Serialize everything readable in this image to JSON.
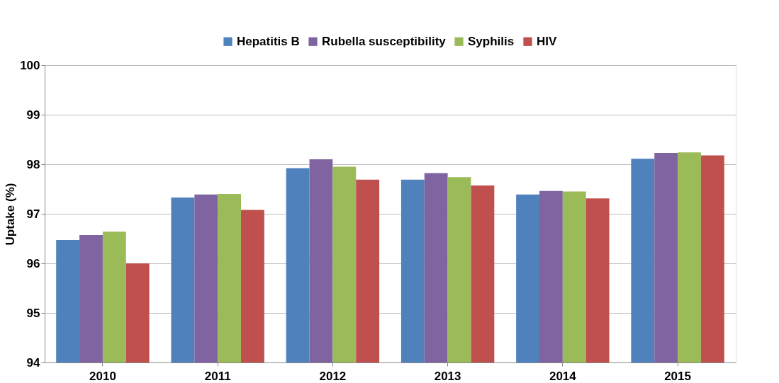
{
  "chart_data": {
    "type": "bar",
    "ylabel": "Uptake (%)",
    "categories": [
      "2010",
      "2011",
      "2012",
      "2013",
      "2014",
      "2015"
    ],
    "series": [
      {
        "name": "Hepatitis B",
        "color": "#4f81bd",
        "values": [
          96.47,
          97.33,
          97.92,
          97.69,
          97.39,
          98.11
        ]
      },
      {
        "name": "Rubella susceptibility",
        "color": "#8064a2",
        "values": [
          96.57,
          97.39,
          98.1,
          97.82,
          97.46,
          98.23
        ]
      },
      {
        "name": "Syphilis",
        "color": "#9bbb59",
        "values": [
          96.64,
          97.4,
          97.95,
          97.74,
          97.45,
          98.24
        ]
      },
      {
        "name": "HIV",
        "color": "#c0504d",
        "values": [
          96.0,
          97.08,
          97.69,
          97.57,
          97.31,
          98.18
        ]
      }
    ],
    "ylim": [
      94,
      100
    ],
    "yticks": [
      94,
      95,
      96,
      97,
      98,
      99,
      100
    ],
    "grid": "y",
    "legend": "top"
  }
}
